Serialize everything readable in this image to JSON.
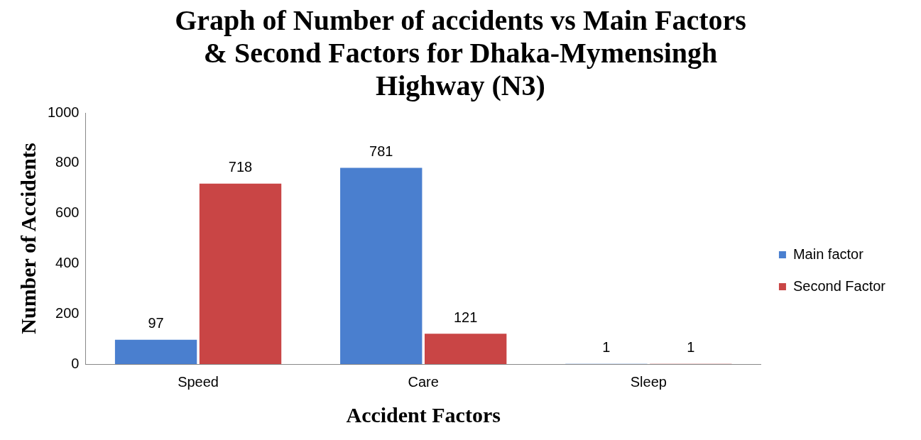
{
  "chart_data": {
    "type": "bar",
    "title": "Graph of Number of accidents vs Main Factors & Second Factors for Dhaka-Mymensingh Highway (N3)",
    "xlabel": "Accident Factors",
    "ylabel": "Number of Accidents",
    "categories": [
      "Speed",
      "Care",
      "Sleep"
    ],
    "series": [
      {
        "name": "Main factor",
        "color": "#4a7fcf",
        "values": [
          97,
          781,
          1
        ]
      },
      {
        "name": "Second Factor",
        "color": "#c94545",
        "values": [
          718,
          121,
          1
        ]
      }
    ],
    "ylim": [
      0,
      1000
    ],
    "yticks": [
      0,
      200,
      400,
      600,
      800,
      1000
    ],
    "grid": false,
    "legend": "right",
    "data_labels": true
  }
}
